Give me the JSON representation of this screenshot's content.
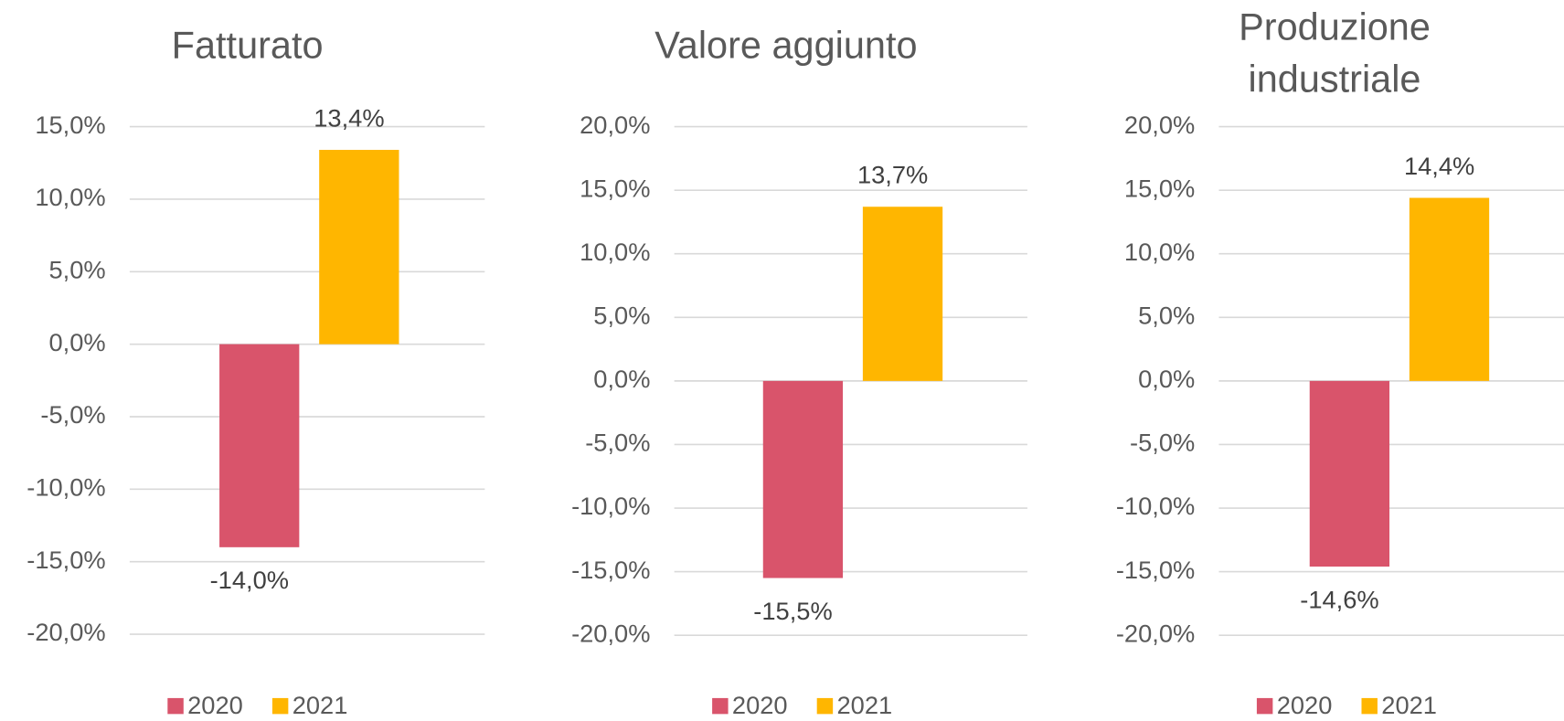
{
  "chart_data": [
    {
      "type": "bar",
      "title": "Fatturato",
      "series": [
        {
          "name": "2020",
          "color": "#d9546b",
          "values": [
            -14.0
          ],
          "value_labels": [
            "-14,0%"
          ]
        },
        {
          "name": "2021",
          "color": "#ffb600",
          "values": [
            13.4
          ],
          "value_labels": [
            "13,4%"
          ]
        }
      ],
      "ylim": [
        -20,
        15
      ],
      "yticks": [
        {
          "value": -20,
          "label": "-20,0%"
        },
        {
          "value": -15,
          "label": "-15,0%"
        },
        {
          "value": -10,
          "label": "-10,0%"
        },
        {
          "value": -5,
          "label": "-5,0%"
        },
        {
          "value": 0,
          "label": "0,0%"
        },
        {
          "value": 5,
          "label": "5,0%"
        },
        {
          "value": 10,
          "label": "10,0%"
        },
        {
          "value": 15,
          "label": "15,0%"
        }
      ],
      "grid": true,
      "legend": "bottom"
    },
    {
      "type": "bar",
      "title": "Valore aggiunto",
      "series": [
        {
          "name": "2020",
          "color": "#d9546b",
          "values": [
            -15.5
          ],
          "value_labels": [
            "-15,5%"
          ]
        },
        {
          "name": "2021",
          "color": "#ffb600",
          "values": [
            13.7
          ],
          "value_labels": [
            "13,7%"
          ]
        }
      ],
      "ylim": [
        -20,
        20
      ],
      "yticks": [
        {
          "value": -20,
          "label": "-20,0%"
        },
        {
          "value": -15,
          "label": "-15,0%"
        },
        {
          "value": -10,
          "label": "-10,0%"
        },
        {
          "value": -5,
          "label": "-5,0%"
        },
        {
          "value": 0,
          "label": "0,0%"
        },
        {
          "value": 5,
          "label": "5,0%"
        },
        {
          "value": 10,
          "label": "10,0%"
        },
        {
          "value": 15,
          "label": "15,0%"
        },
        {
          "value": 20,
          "label": "20,0%"
        }
      ],
      "grid": true,
      "legend": "bottom"
    },
    {
      "type": "bar",
      "title": [
        "Produzione",
        "industriale"
      ],
      "series": [
        {
          "name": "2020",
          "color": "#d9546b",
          "values": [
            -14.6
          ],
          "value_labels": [
            "-14,6%"
          ]
        },
        {
          "name": "2021",
          "color": "#ffb600",
          "values": [
            14.4
          ],
          "value_labels": [
            "14,4%"
          ]
        }
      ],
      "ylim": [
        -20,
        20
      ],
      "yticks": [
        {
          "value": -20,
          "label": "-20,0%"
        },
        {
          "value": -15,
          "label": "-15,0%"
        },
        {
          "value": -10,
          "label": "-10,0%"
        },
        {
          "value": -5,
          "label": "-5,0%"
        },
        {
          "value": 0,
          "label": "0,0%"
        },
        {
          "value": 5,
          "label": "5,0%"
        },
        {
          "value": 10,
          "label": "10,0%"
        },
        {
          "value": 15,
          "label": "15,0%"
        },
        {
          "value": 20,
          "label": "20,0%"
        }
      ],
      "grid": true,
      "legend": "bottom"
    }
  ]
}
